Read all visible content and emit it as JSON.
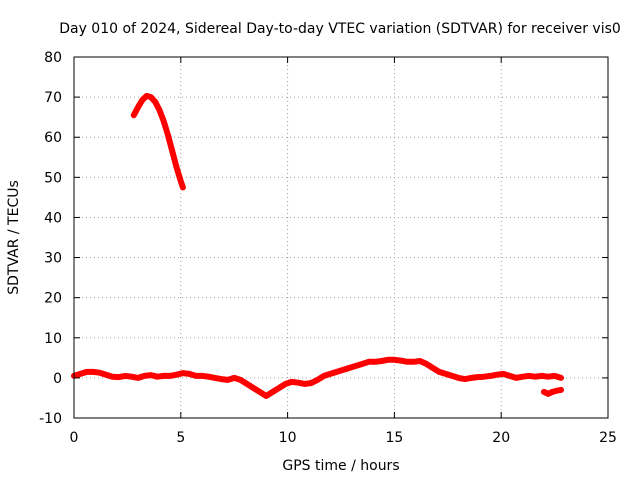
{
  "chart_data": {
    "type": "scatter",
    "title": "Day 010 of 2024, Sidereal Day-to-day VTEC variation (SDTVAR) for receiver vis0",
    "xlabel": "GPS time / hours",
    "ylabel": "SDTVAR / TECUs",
    "xlim": [
      0,
      25
    ],
    "ylim": [
      -10,
      80
    ],
    "xticks": [
      0,
      5,
      10,
      15,
      20,
      25
    ],
    "yticks": [
      -10,
      0,
      10,
      20,
      30,
      40,
      50,
      60,
      70,
      80
    ],
    "grid": true,
    "legend": "none",
    "series_color": "#ff0000",
    "series": [
      {
        "name": "arc-high",
        "points": [
          [
            2.8,
            65.5
          ],
          [
            3.0,
            67.5
          ],
          [
            3.2,
            69.3
          ],
          [
            3.4,
            70.3
          ],
          [
            3.6,
            70.0
          ],
          [
            3.8,
            68.8
          ],
          [
            4.0,
            66.8
          ],
          [
            4.2,
            64.0
          ],
          [
            4.4,
            60.5
          ],
          [
            4.6,
            56.5
          ],
          [
            4.8,
            52.5
          ],
          [
            5.0,
            49.0
          ],
          [
            5.1,
            47.5
          ]
        ]
      },
      {
        "name": "baseline",
        "points": [
          [
            0.0,
            0.5
          ],
          [
            0.3,
            1.0
          ],
          [
            0.6,
            1.5
          ],
          [
            0.9,
            1.5
          ],
          [
            1.2,
            1.3
          ],
          [
            1.5,
            0.8
          ],
          [
            1.8,
            0.3
          ],
          [
            2.1,
            0.2
          ],
          [
            2.4,
            0.5
          ],
          [
            2.7,
            0.3
          ],
          [
            3.0,
            0.0
          ],
          [
            3.3,
            0.5
          ],
          [
            3.6,
            0.7
          ],
          [
            3.9,
            0.3
          ],
          [
            4.2,
            0.5
          ],
          [
            4.5,
            0.5
          ],
          [
            4.8,
            0.8
          ],
          [
            5.1,
            1.2
          ],
          [
            5.4,
            1.0
          ],
          [
            5.7,
            0.5
          ],
          [
            6.0,
            0.5
          ],
          [
            6.3,
            0.3
          ],
          [
            6.6,
            0.0
          ],
          [
            6.9,
            -0.3
          ],
          [
            7.2,
            -0.5
          ],
          [
            7.5,
            0.0
          ],
          [
            7.8,
            -0.5
          ],
          [
            8.1,
            -1.5
          ],
          [
            8.4,
            -2.5
          ],
          [
            8.7,
            -3.5
          ],
          [
            9.0,
            -4.5
          ],
          [
            9.3,
            -3.5
          ],
          [
            9.6,
            -2.5
          ],
          [
            9.9,
            -1.5
          ],
          [
            10.2,
            -1.0
          ],
          [
            10.5,
            -1.2
          ],
          [
            10.8,
            -1.5
          ],
          [
            11.1,
            -1.3
          ],
          [
            11.4,
            -0.5
          ],
          [
            11.7,
            0.5
          ],
          [
            12.0,
            1.0
          ],
          [
            12.3,
            1.5
          ],
          [
            12.6,
            2.0
          ],
          [
            12.9,
            2.5
          ],
          [
            13.2,
            3.0
          ],
          [
            13.5,
            3.5
          ],
          [
            13.8,
            4.0
          ],
          [
            14.1,
            4.0
          ],
          [
            14.4,
            4.2
          ],
          [
            14.7,
            4.5
          ],
          [
            15.0,
            4.5
          ],
          [
            15.3,
            4.3
          ],
          [
            15.6,
            4.0
          ],
          [
            15.9,
            4.0
          ],
          [
            16.2,
            4.2
          ],
          [
            16.5,
            3.5
          ],
          [
            16.8,
            2.5
          ],
          [
            17.1,
            1.5
          ],
          [
            17.4,
            1.0
          ],
          [
            17.7,
            0.5
          ],
          [
            18.0,
            0.0
          ],
          [
            18.3,
            -0.3
          ],
          [
            18.6,
            0.0
          ],
          [
            18.9,
            0.2
          ],
          [
            19.2,
            0.3
          ],
          [
            19.5,
            0.5
          ],
          [
            19.8,
            0.8
          ],
          [
            20.1,
            1.0
          ],
          [
            20.4,
            0.5
          ],
          [
            20.7,
            0.0
          ],
          [
            21.0,
            0.3
          ],
          [
            21.3,
            0.5
          ],
          [
            21.6,
            0.3
          ],
          [
            21.9,
            0.5
          ],
          [
            22.2,
            0.3
          ],
          [
            22.5,
            0.5
          ],
          [
            22.8,
            0.0
          ]
        ]
      },
      {
        "name": "tail-low",
        "points": [
          [
            22.0,
            -3.5
          ],
          [
            22.2,
            -4.0
          ],
          [
            22.4,
            -3.5
          ],
          [
            22.6,
            -3.2
          ],
          [
            22.8,
            -3.0
          ]
        ]
      }
    ]
  }
}
